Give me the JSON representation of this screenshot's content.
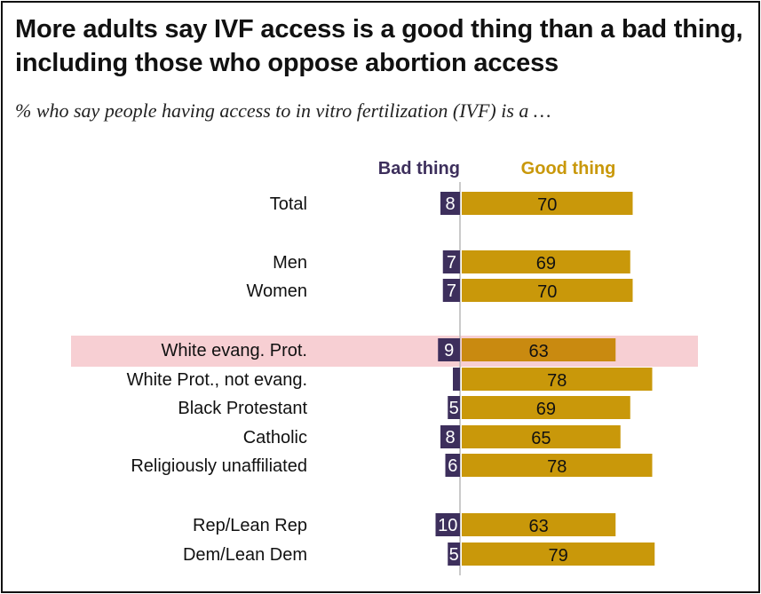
{
  "title": "More adults say IVF access is a good thing than a bad thing, including those who oppose abortion access",
  "subtitle": "% who say people having access to in vitro fertilization (IVF) is a …",
  "colors": {
    "bad": "#3d2f5c",
    "good": "#c9980a",
    "good_highlight": "#c98a10",
    "highlight_band": "#f7cfd3",
    "axis": "#b8b8b8"
  },
  "chart_data": {
    "type": "bar",
    "orientation": "horizontal",
    "series": [
      {
        "name": "Bad thing",
        "values": [
          8,
          7,
          7,
          9,
          null,
          5,
          8,
          6,
          10,
          5
        ]
      },
      {
        "name": "Good thing",
        "values": [
          70,
          69,
          70,
          63,
          78,
          69,
          65,
          78,
          63,
          79
        ]
      }
    ],
    "categories": [
      "Total",
      "Men",
      "Women",
      "White evang. Prot.",
      "White Prot., not evang.",
      "Black Protestant",
      "Catholic",
      "Religiously unaffiliated",
      "Rep/Lean Rep",
      "Dem/Lean Dem"
    ],
    "bad_labels": [
      "8",
      "7",
      "7",
      "9",
      "",
      "5",
      "8",
      "6",
      "10",
      "5"
    ],
    "good_labels": [
      "70",
      "69",
      "70",
      "63",
      "78",
      "69",
      "65",
      "78",
      "63",
      "79"
    ],
    "highlighted_category": "White evang. Prot."
  }
}
